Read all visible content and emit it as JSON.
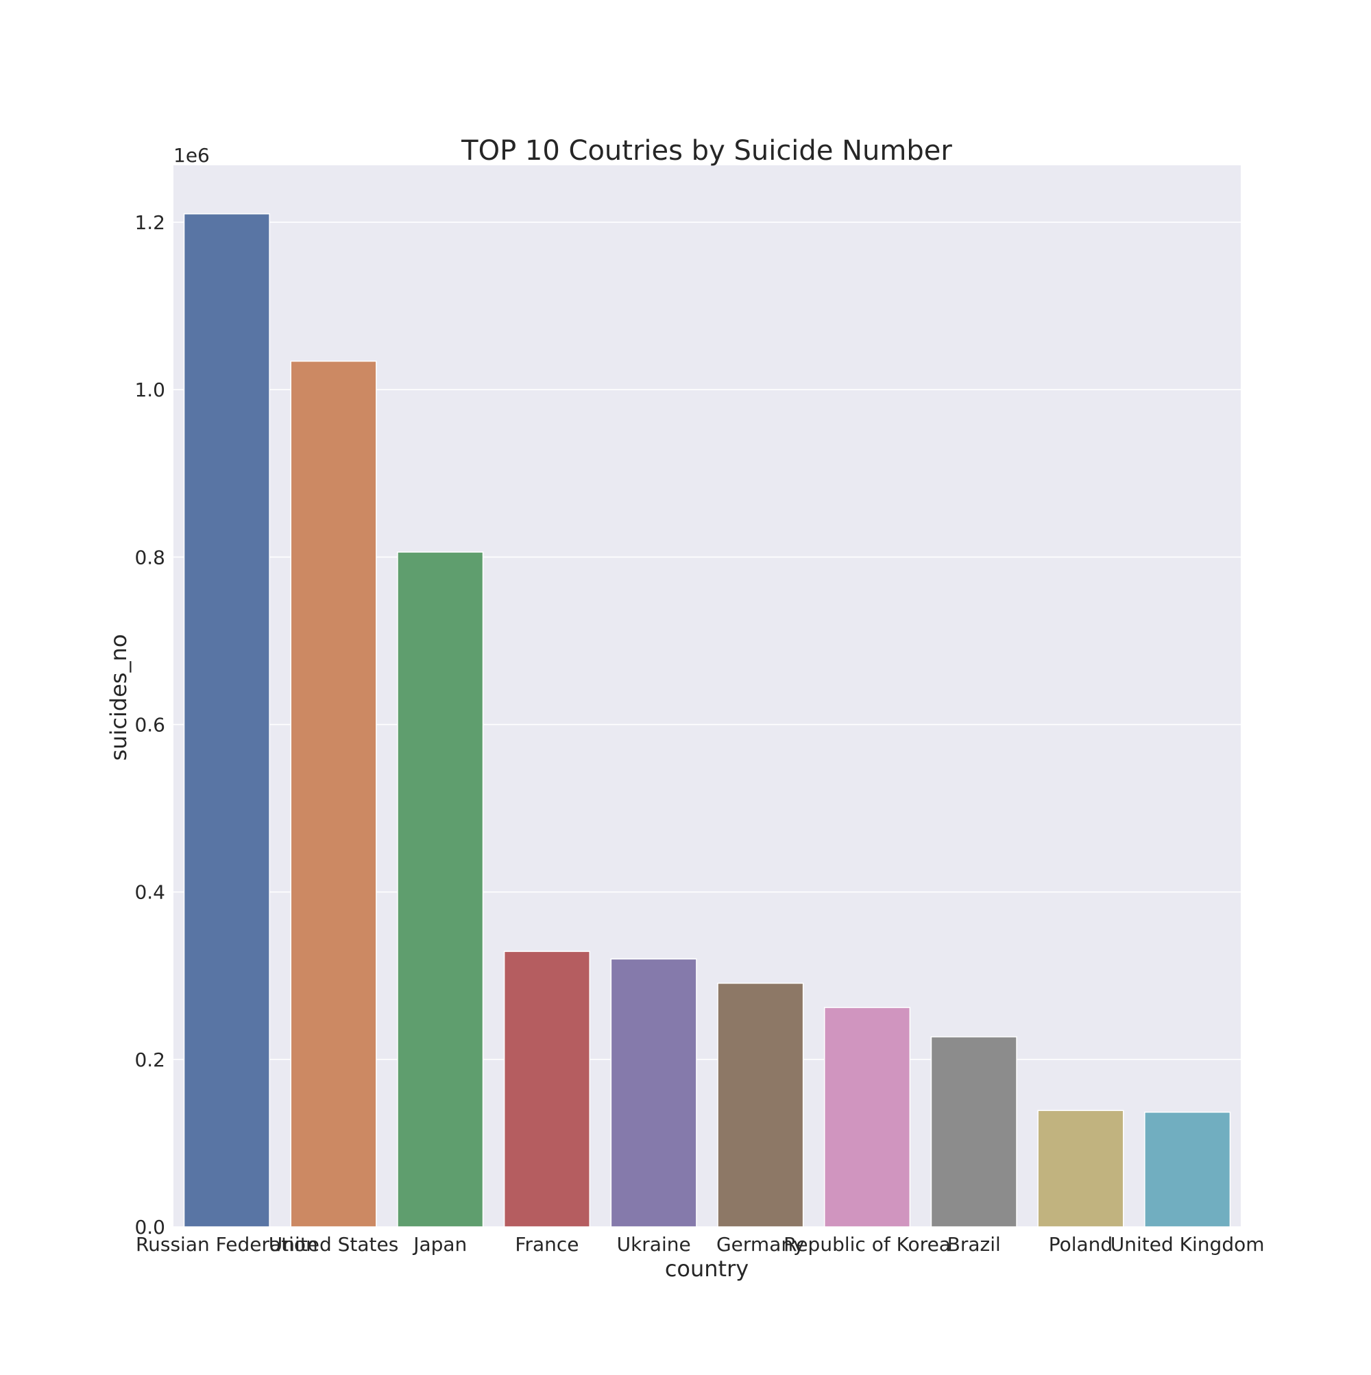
{
  "chart_data": {
    "type": "bar",
    "title": "TOP 10 Coutries by Suicide Number",
    "xlabel": "country",
    "ylabel": "suicides_no",
    "y_offset_label": "1e6",
    "categories": [
      "Russian Federation",
      "United States",
      "Japan",
      "France",
      "Ukraine",
      "Germany",
      "Republic of Korea",
      "Brazil",
      "Poland",
      "United Kingdom"
    ],
    "values": [
      1.21,
      1.034,
      0.806,
      0.329,
      0.32,
      0.291,
      0.262,
      0.227,
      0.139,
      0.137
    ],
    "colors": [
      "#5975a4",
      "#cc8963",
      "#5f9e6e",
      "#b55d60",
      "#857aab",
      "#8d7866",
      "#d095bf",
      "#8c8c8c",
      "#c1b37f",
      "#71aec0"
    ],
    "ylim": [
      0,
      1.268
    ],
    "yticks": [
      0.0,
      0.2,
      0.4,
      0.6,
      0.8,
      1.0,
      1.2
    ],
    "ytick_labels": [
      "0.0",
      "0.2",
      "0.4",
      "0.6",
      "0.8",
      "1.0",
      "1.2"
    ],
    "grid": true,
    "background": "#eaeaf2",
    "grid_color": "#ffffff"
  }
}
